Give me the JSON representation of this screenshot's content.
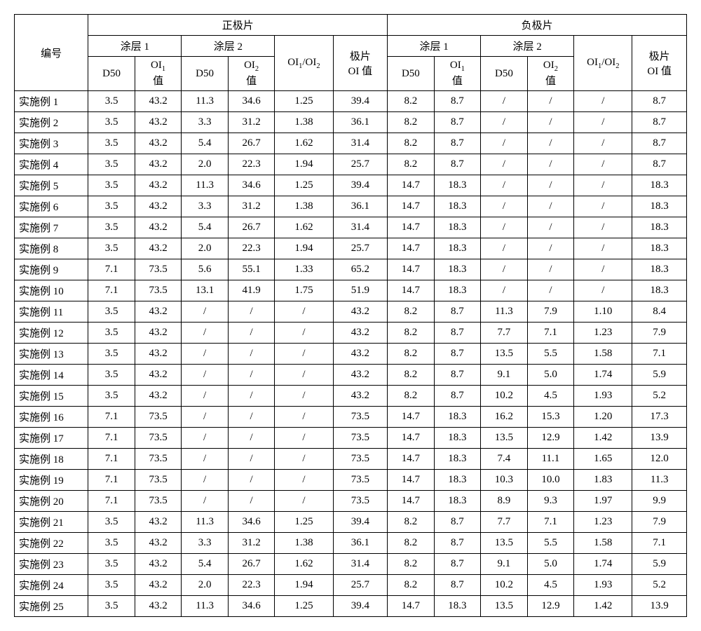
{
  "headers": {
    "id": "编号",
    "pos_group": "正极片",
    "neg_group": "负极片",
    "coat1": "涂层 1",
    "coat2": "涂层 2",
    "d50": "D50",
    "oi1_html": "OI<sub>1</sub><br>值",
    "oi2_html": "OI<sub>2</sub><br>值",
    "ratio_html": "OI<sub>1</sub>/OI<sub>2</sub>",
    "sheet_oi_html": "极片<br>OI 值"
  },
  "col_widths_pct": [
    9.5,
    6,
    6,
    6,
    6,
    7.5,
    7,
    6,
    6,
    6,
    6,
    7.5,
    7
  ],
  "rows": [
    {
      "label": "实施例 1",
      "p": [
        "3.5",
        "43.2",
        "11.3",
        "34.6",
        "1.25",
        "39.4"
      ],
      "n": [
        "8.2",
        "8.7",
        "/",
        "/",
        "/",
        "8.7"
      ]
    },
    {
      "label": "实施例 2",
      "p": [
        "3.5",
        "43.2",
        "3.3",
        "31.2",
        "1.38",
        "36.1"
      ],
      "n": [
        "8.2",
        "8.7",
        "/",
        "/",
        "/",
        "8.7"
      ]
    },
    {
      "label": "实施例 3",
      "p": [
        "3.5",
        "43.2",
        "5.4",
        "26.7",
        "1.62",
        "31.4"
      ],
      "n": [
        "8.2",
        "8.7",
        "/",
        "/",
        "/",
        "8.7"
      ]
    },
    {
      "label": "实施例 4",
      "p": [
        "3.5",
        "43.2",
        "2.0",
        "22.3",
        "1.94",
        "25.7"
      ],
      "n": [
        "8.2",
        "8.7",
        "/",
        "/",
        "/",
        "8.7"
      ]
    },
    {
      "label": "实施例 5",
      "p": [
        "3.5",
        "43.2",
        "11.3",
        "34.6",
        "1.25",
        "39.4"
      ],
      "n": [
        "14.7",
        "18.3",
        "/",
        "/",
        "/",
        "18.3"
      ]
    },
    {
      "label": "实施例 6",
      "p": [
        "3.5",
        "43.2",
        "3.3",
        "31.2",
        "1.38",
        "36.1"
      ],
      "n": [
        "14.7",
        "18.3",
        "/",
        "/",
        "/",
        "18.3"
      ]
    },
    {
      "label": "实施例 7",
      "p": [
        "3.5",
        "43.2",
        "5.4",
        "26.7",
        "1.62",
        "31.4"
      ],
      "n": [
        "14.7",
        "18.3",
        "/",
        "/",
        "/",
        "18.3"
      ]
    },
    {
      "label": "实施例 8",
      "p": [
        "3.5",
        "43.2",
        "2.0",
        "22.3",
        "1.94",
        "25.7"
      ],
      "n": [
        "14.7",
        "18.3",
        "/",
        "/",
        "/",
        "18.3"
      ]
    },
    {
      "label": "实施例 9",
      "p": [
        "7.1",
        "73.5",
        "5.6",
        "55.1",
        "1.33",
        "65.2"
      ],
      "n": [
        "14.7",
        "18.3",
        "/",
        "/",
        "/",
        "18.3"
      ]
    },
    {
      "label": "实施例 10",
      "p": [
        "7.1",
        "73.5",
        "13.1",
        "41.9",
        "1.75",
        "51.9"
      ],
      "n": [
        "14.7",
        "18.3",
        "/",
        "/",
        "/",
        "18.3"
      ]
    },
    {
      "label": "实施例 11",
      "p": [
        "3.5",
        "43.2",
        "/",
        "/",
        "/",
        "43.2"
      ],
      "n": [
        "8.2",
        "8.7",
        "11.3",
        "7.9",
        "1.10",
        "8.4"
      ]
    },
    {
      "label": "实施例 12",
      "p": [
        "3.5",
        "43.2",
        "/",
        "/",
        "/",
        "43.2"
      ],
      "n": [
        "8.2",
        "8.7",
        "7.7",
        "7.1",
        "1.23",
        "7.9"
      ]
    },
    {
      "label": "实施例 13",
      "p": [
        "3.5",
        "43.2",
        "/",
        "/",
        "/",
        "43.2"
      ],
      "n": [
        "8.2",
        "8.7",
        "13.5",
        "5.5",
        "1.58",
        "7.1"
      ]
    },
    {
      "label": "实施例 14",
      "p": [
        "3.5",
        "43.2",
        "/",
        "/",
        "/",
        "43.2"
      ],
      "n": [
        "8.2",
        "8.7",
        "9.1",
        "5.0",
        "1.74",
        "5.9"
      ]
    },
    {
      "label": "实施例 15",
      "p": [
        "3.5",
        "43.2",
        "/",
        "/",
        "/",
        "43.2"
      ],
      "n": [
        "8.2",
        "8.7",
        "10.2",
        "4.5",
        "1.93",
        "5.2"
      ]
    },
    {
      "label": "实施例 16",
      "p": [
        "7.1",
        "73.5",
        "/",
        "/",
        "/",
        "73.5"
      ],
      "n": [
        "14.7",
        "18.3",
        "16.2",
        "15.3",
        "1.20",
        "17.3"
      ]
    },
    {
      "label": "实施例 17",
      "p": [
        "7.1",
        "73.5",
        "/",
        "/",
        "/",
        "73.5"
      ],
      "n": [
        "14.7",
        "18.3",
        "13.5",
        "12.9",
        "1.42",
        "13.9"
      ]
    },
    {
      "label": "实施例 18",
      "p": [
        "7.1",
        "73.5",
        "/",
        "/",
        "/",
        "73.5"
      ],
      "n": [
        "14.7",
        "18.3",
        "7.4",
        "11.1",
        "1.65",
        "12.0"
      ]
    },
    {
      "label": "实施例 19",
      "p": [
        "7.1",
        "73.5",
        "/",
        "/",
        "/",
        "73.5"
      ],
      "n": [
        "14.7",
        "18.3",
        "10.3",
        "10.0",
        "1.83",
        "11.3"
      ]
    },
    {
      "label": "实施例 20",
      "p": [
        "7.1",
        "73.5",
        "/",
        "/",
        "/",
        "73.5"
      ],
      "n": [
        "14.7",
        "18.3",
        "8.9",
        "9.3",
        "1.97",
        "9.9"
      ]
    },
    {
      "label": "实施例 21",
      "p": [
        "3.5",
        "43.2",
        "11.3",
        "34.6",
        "1.25",
        "39.4"
      ],
      "n": [
        "8.2",
        "8.7",
        "7.7",
        "7.1",
        "1.23",
        "7.9"
      ]
    },
    {
      "label": "实施例 22",
      "p": [
        "3.5",
        "43.2",
        "3.3",
        "31.2",
        "1.38",
        "36.1"
      ],
      "n": [
        "8.2",
        "8.7",
        "13.5",
        "5.5",
        "1.58",
        "7.1"
      ]
    },
    {
      "label": "实施例 23",
      "p": [
        "3.5",
        "43.2",
        "5.4",
        "26.7",
        "1.62",
        "31.4"
      ],
      "n": [
        "8.2",
        "8.7",
        "9.1",
        "5.0",
        "1.74",
        "5.9"
      ]
    },
    {
      "label": "实施例 24",
      "p": [
        "3.5",
        "43.2",
        "2.0",
        "22.3",
        "1.94",
        "25.7"
      ],
      "n": [
        "8.2",
        "8.7",
        "10.2",
        "4.5",
        "1.93",
        "5.2"
      ]
    },
    {
      "label": "实施例 25",
      "p": [
        "3.5",
        "43.2",
        "11.3",
        "34.6",
        "1.25",
        "39.4"
      ],
      "n": [
        "14.7",
        "18.3",
        "13.5",
        "12.9",
        "1.42",
        "13.9"
      ]
    }
  ]
}
